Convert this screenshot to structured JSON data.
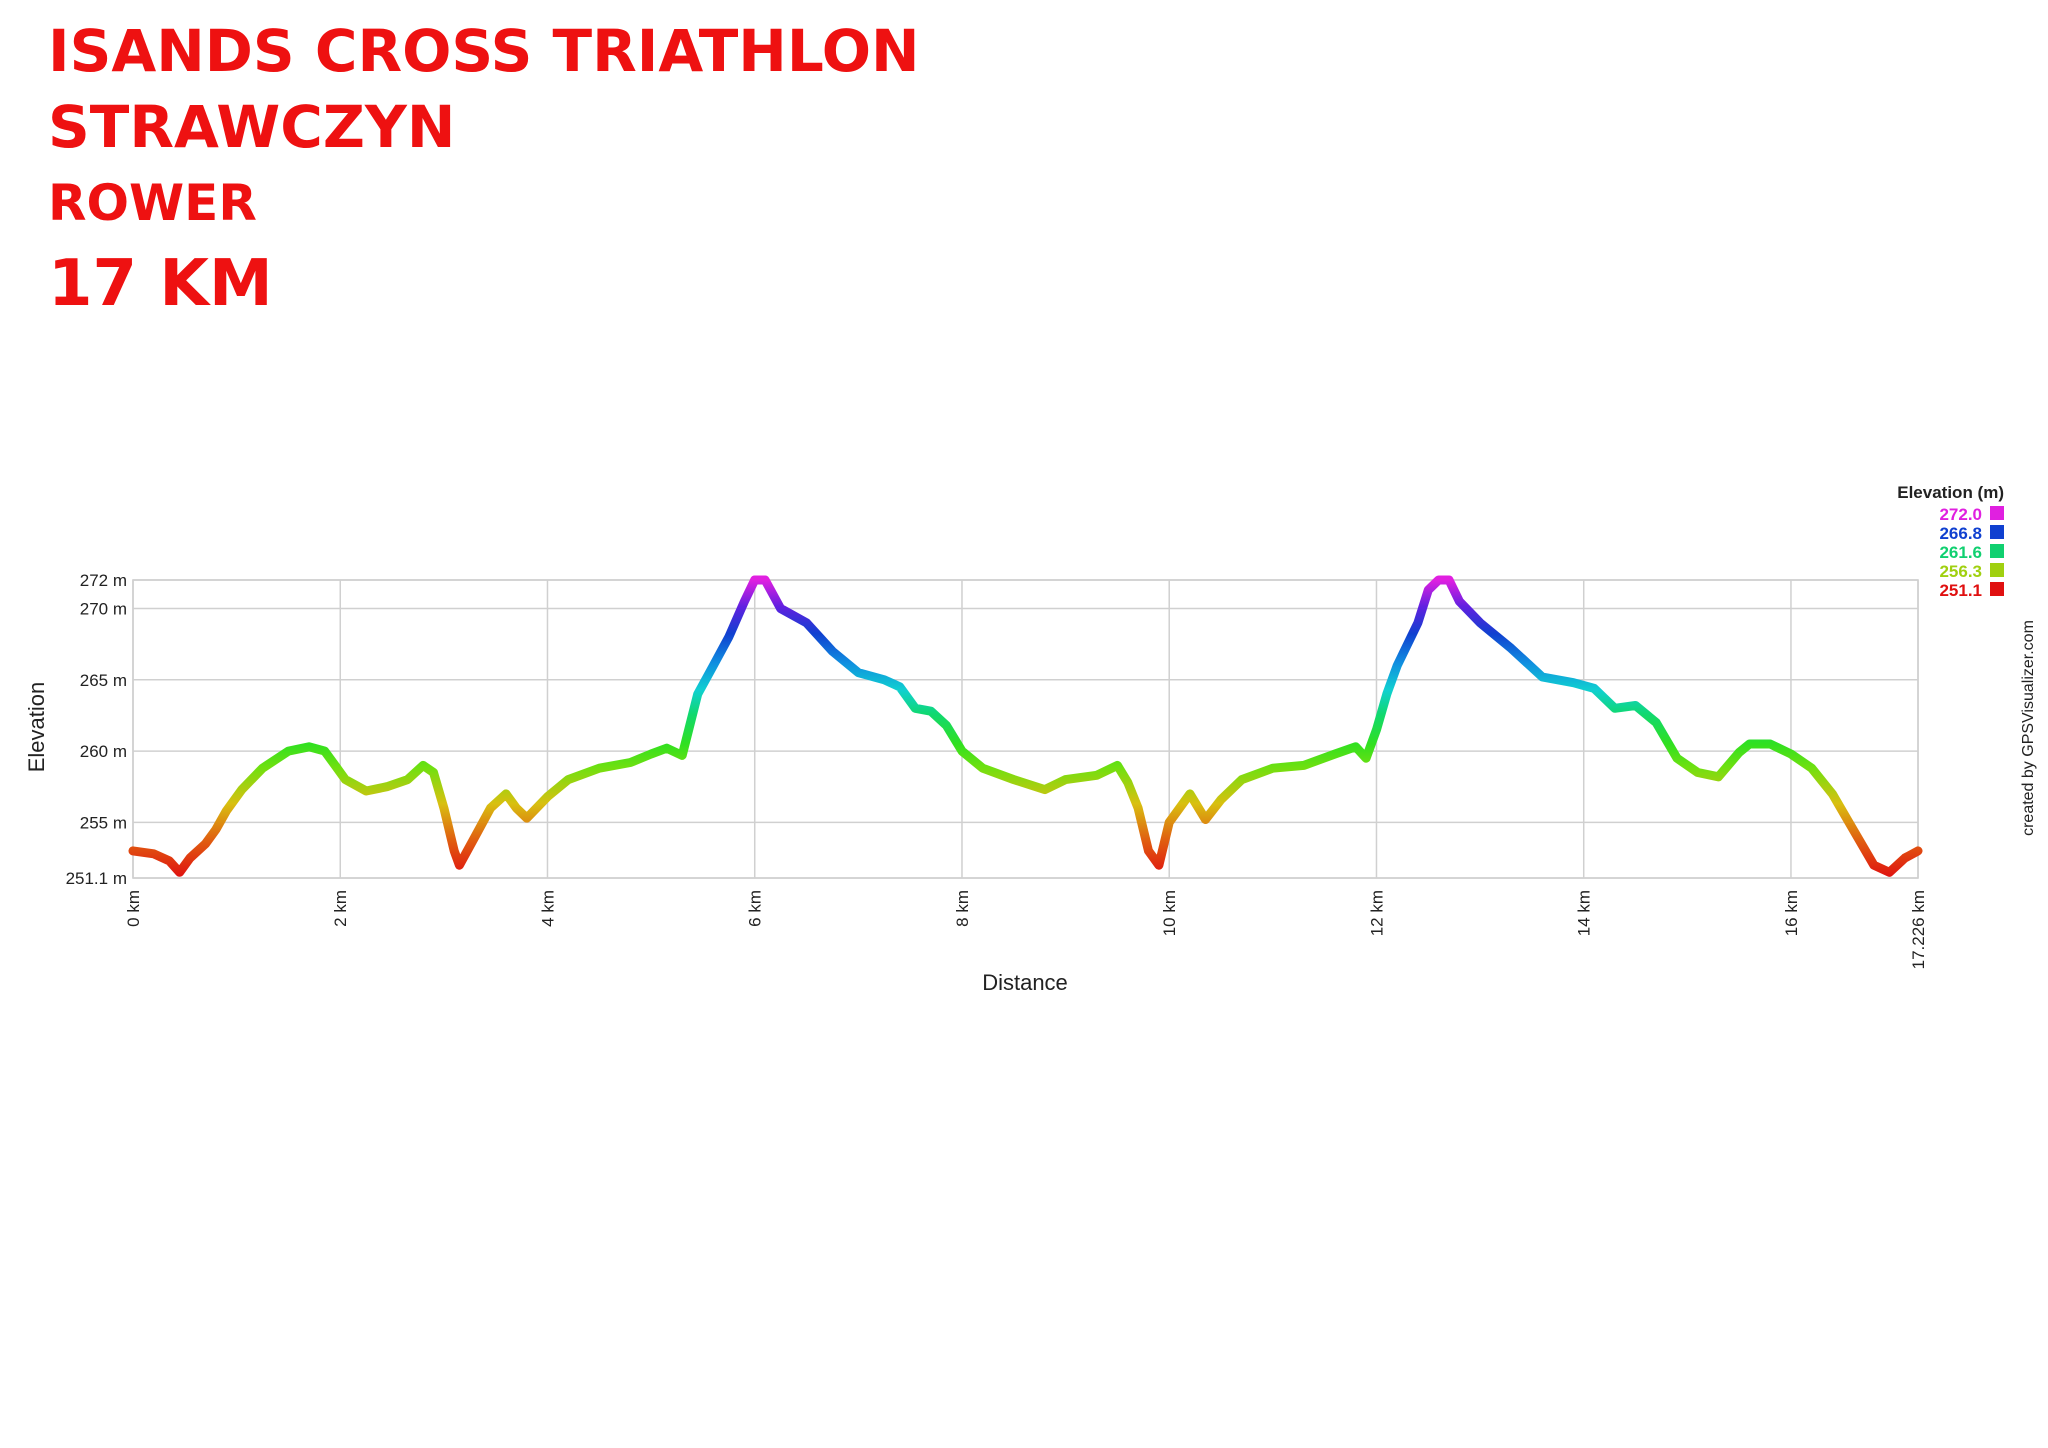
{
  "header": {
    "line1": "ISANDS CROSS TRIATHLON",
    "line2": "STRAWCZYN",
    "line3": "ROWER",
    "line4": "17 KM"
  },
  "credit": "created by GPSVisualizer.com",
  "chart_data": {
    "type": "line",
    "xlabel": "Distance",
    "ylabel": "Elevation",
    "xlim": [
      0,
      17.226
    ],
    "ylim": [
      251.1,
      272
    ],
    "grid": true,
    "y_ticks": [
      {
        "value": 272,
        "label": "272 m"
      },
      {
        "value": 270,
        "label": "270 m"
      },
      {
        "value": 265,
        "label": "265 m"
      },
      {
        "value": 260,
        "label": "260 m"
      },
      {
        "value": 255,
        "label": "255 m"
      },
      {
        "value": 251.1,
        "label": "251.1 m"
      }
    ],
    "x_ticks": [
      {
        "value": 0,
        "label": "0 km"
      },
      {
        "value": 2,
        "label": "2 km"
      },
      {
        "value": 4,
        "label": "4 km"
      },
      {
        "value": 6,
        "label": "6 km"
      },
      {
        "value": 8,
        "label": "8 km"
      },
      {
        "value": 10,
        "label": "10 km"
      },
      {
        "value": 12,
        "label": "12 km"
      },
      {
        "value": 14,
        "label": "14 km"
      },
      {
        "value": 16,
        "label": "16 km"
      },
      {
        "value": 17.226,
        "label": "17.226 km"
      }
    ],
    "legend": {
      "title": "Elevation (m)",
      "placement": "top-right",
      "entries": [
        {
          "label": "272.0",
          "color": "#e020e0"
        },
        {
          "label": "266.8",
          "color": "#1040d0"
        },
        {
          "label": "261.6",
          "color": "#10d070"
        },
        {
          "label": "256.3",
          "color": "#a0d010"
        },
        {
          "label": "251.1",
          "color": "#e01010"
        }
      ]
    },
    "series": [
      {
        "x": [
          0,
          0.2,
          0.35,
          0.45,
          0.55,
          0.7,
          0.8,
          0.9,
          1.05,
          1.25,
          1.5,
          1.7,
          1.85,
          1.95,
          2.05,
          2.25,
          2.45,
          2.65,
          2.8,
          2.9,
          3.0,
          3.1,
          3.15,
          3.3,
          3.45,
          3.6,
          3.7,
          3.8,
          4.0,
          4.2,
          4.5,
          4.8,
          5.0,
          5.15,
          5.3,
          5.45,
          5.6,
          5.75,
          5.9,
          6.0,
          6.1,
          6.25,
          6.5,
          6.75,
          7.0,
          7.25,
          7.4,
          7.55,
          7.7,
          7.85,
          8.0,
          8.2,
          8.5,
          8.8,
          9.0,
          9.3,
          9.5,
          9.6,
          9.7,
          9.8,
          9.9,
          10.0,
          10.2,
          10.35,
          10.5,
          10.7,
          11.0,
          11.3,
          11.6,
          11.8,
          11.9,
          12.0,
          12.1,
          12.2,
          12.4,
          12.5,
          12.6,
          12.7,
          12.8,
          13.0,
          13.3,
          13.6,
          13.9,
          14.1,
          14.3,
          14.5,
          14.7,
          14.9,
          15.1,
          15.3,
          15.5,
          15.6,
          15.8,
          16.0,
          16.2,
          16.4,
          16.6,
          16.8,
          16.95,
          17.1,
          17.226
        ],
        "y": [
          253,
          252.8,
          252.3,
          251.5,
          252.5,
          253.5,
          254.5,
          255.8,
          257.3,
          258.8,
          260,
          260.3,
          260,
          259,
          258,
          257.2,
          257.5,
          258,
          259,
          258.5,
          256,
          253,
          252,
          254,
          256,
          257,
          256,
          255.3,
          256.8,
          258,
          258.8,
          259.2,
          259.8,
          260.2,
          259.7,
          264,
          266,
          268,
          270.5,
          272,
          272,
          270,
          269,
          267,
          265.5,
          265,
          264.5,
          263,
          262.8,
          261.8,
          260,
          258.8,
          258,
          257.3,
          258,
          258.3,
          259,
          257.8,
          256,
          253,
          252,
          255,
          257,
          255.2,
          256.6,
          258,
          258.8,
          259,
          259.8,
          260.3,
          259.5,
          261.5,
          264,
          266,
          269,
          271.3,
          272,
          272,
          270.5,
          269,
          267.2,
          265.2,
          264.8,
          264.4,
          263,
          263.2,
          262,
          259.5,
          258.5,
          258.2,
          259.9,
          260.5,
          260.5,
          259.8,
          258.8,
          257,
          254.5,
          252,
          251.5,
          252.5,
          253
        ]
      }
    ]
  }
}
